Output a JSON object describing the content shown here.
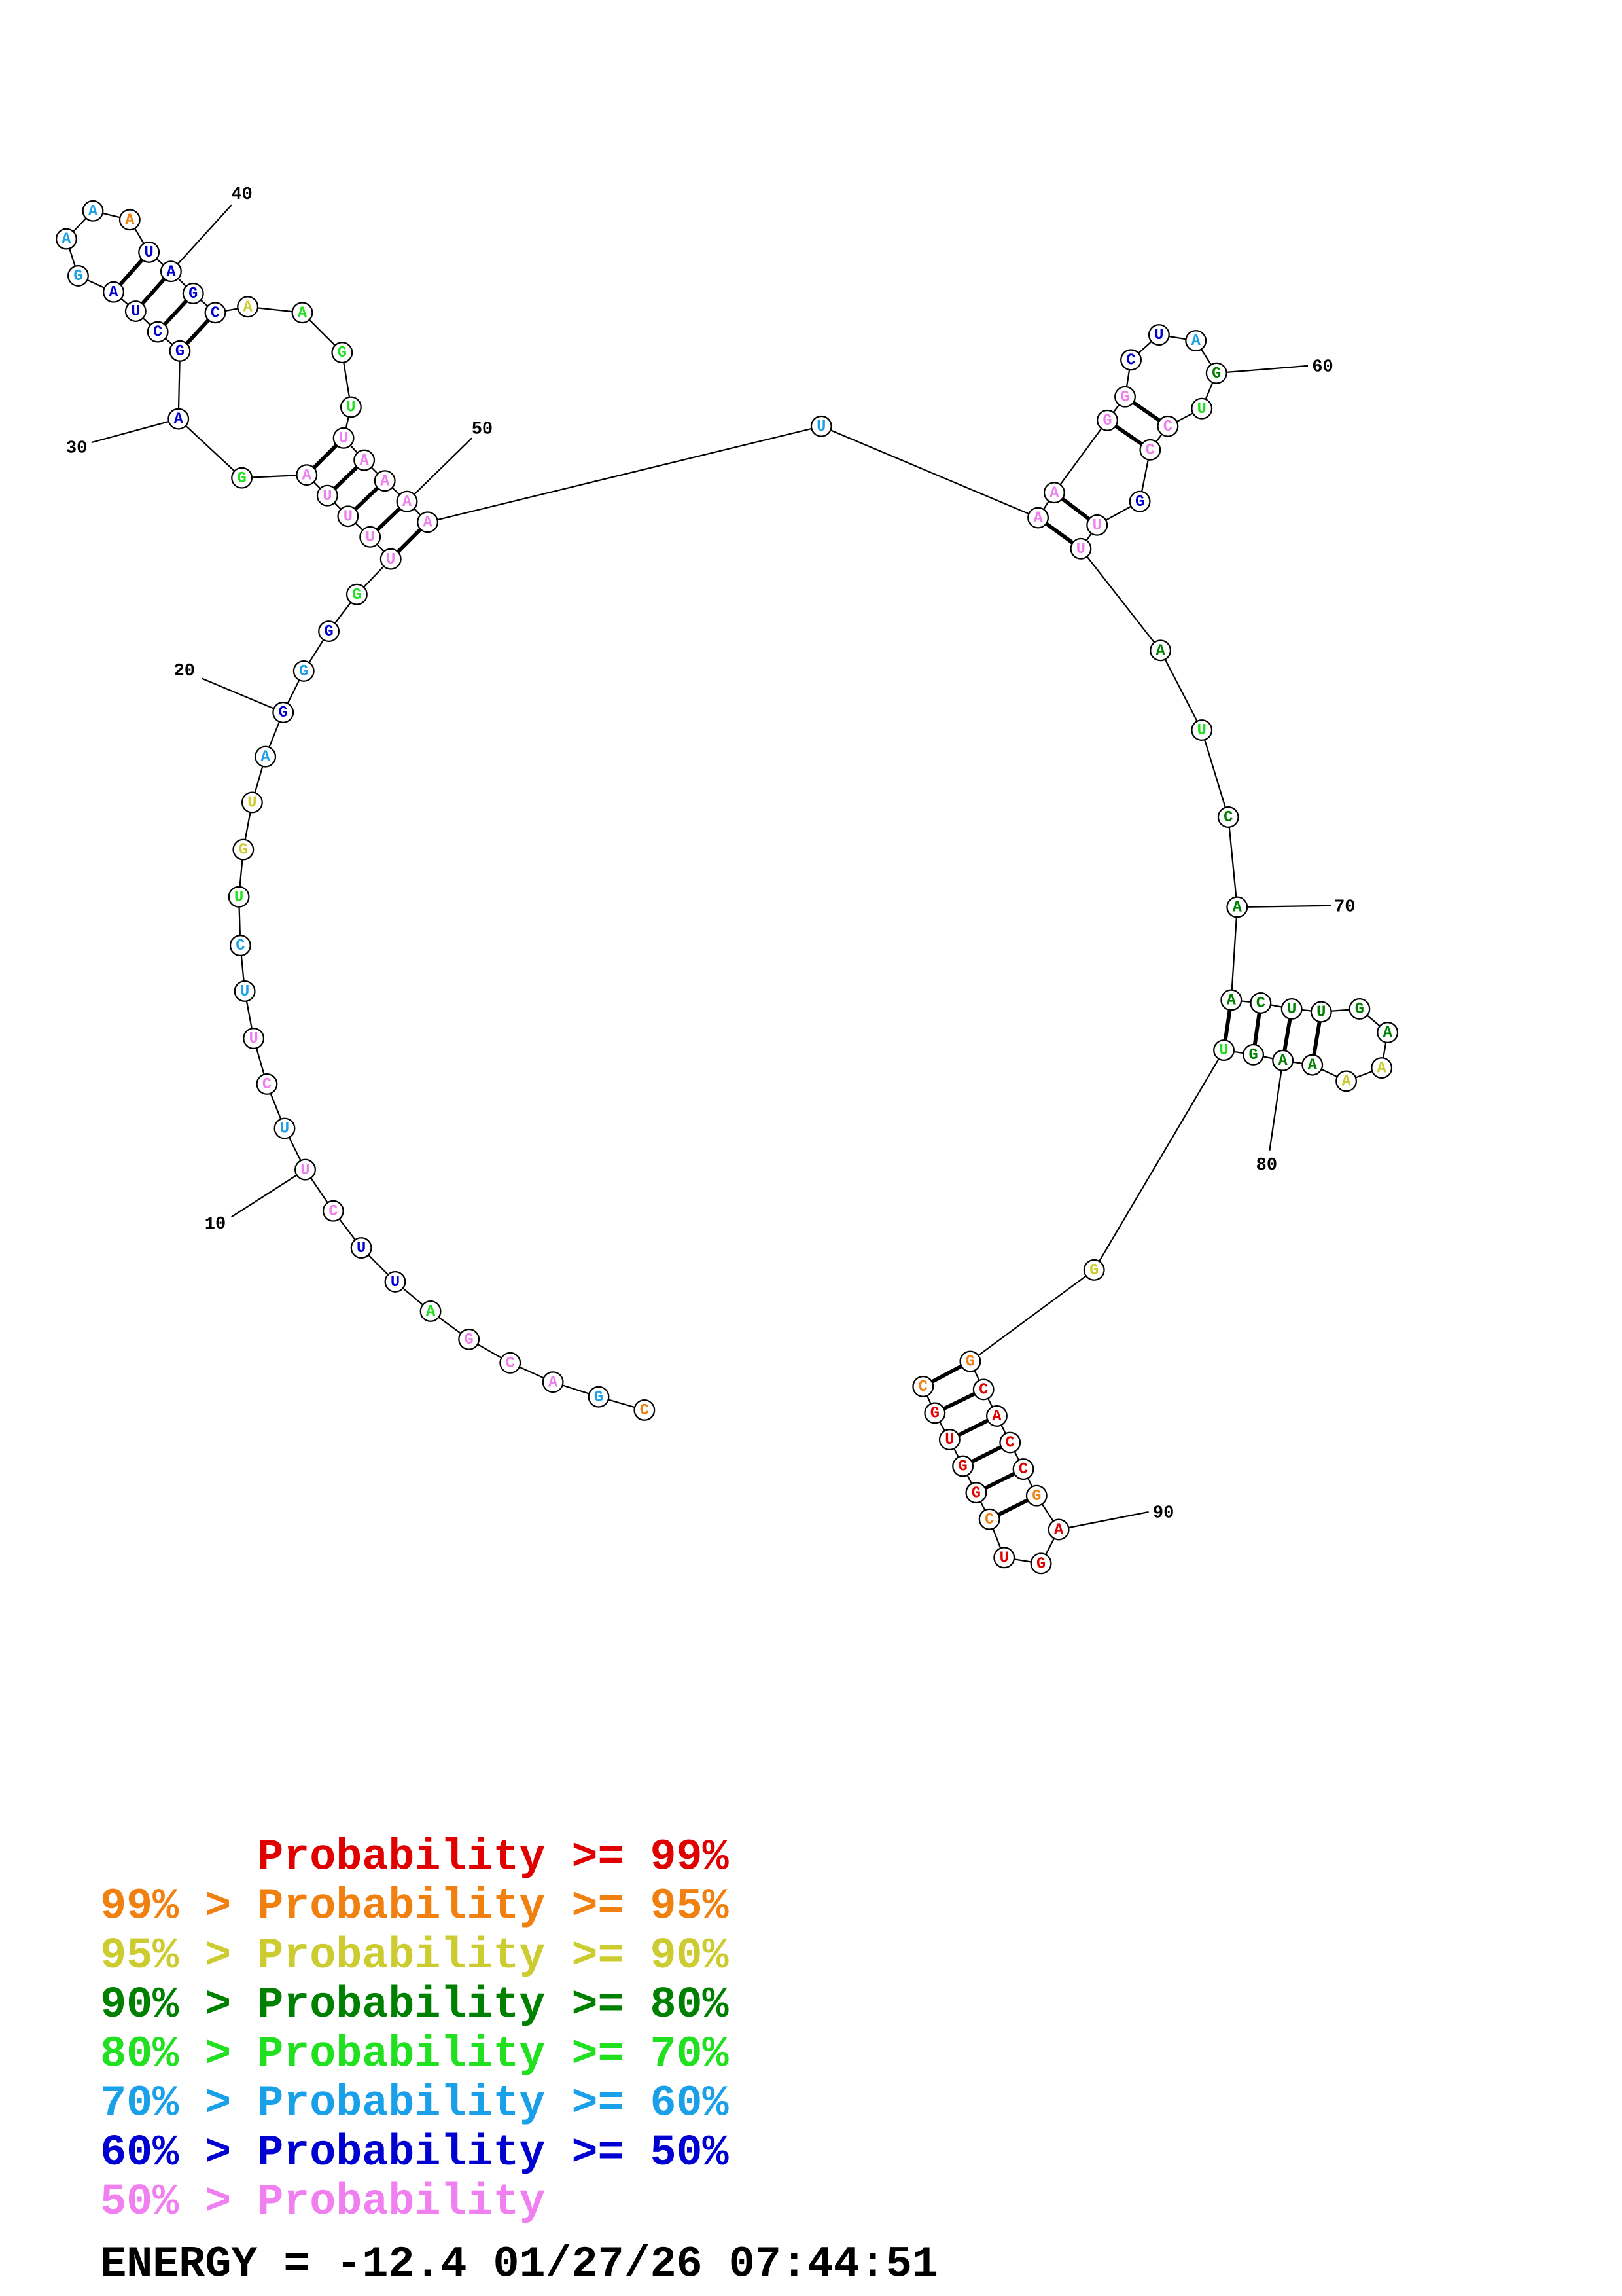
{
  "bases": [
    "C",
    "G",
    "A",
    "C",
    "G",
    "A",
    "U",
    "U",
    "C",
    "U",
    "U",
    "C",
    "U",
    "U",
    "C",
    "U",
    "G",
    "U",
    "A",
    "G",
    "G",
    "G",
    "G",
    "U",
    "U",
    "U",
    "U",
    "A",
    "G",
    "A",
    "G",
    "C",
    "U",
    "A",
    "G",
    "A",
    "A",
    "A",
    "U",
    "A",
    "G",
    "C",
    "A",
    "A",
    "G",
    "U",
    "U",
    "A",
    "A",
    "A",
    "A",
    "U",
    "A",
    "A",
    "G",
    "G",
    "C",
    "U",
    "A",
    "G",
    "U",
    "C",
    "C",
    "G",
    "U",
    "U",
    "A",
    "U",
    "C",
    "A",
    "A",
    "C",
    "U",
    "U",
    "G",
    "A",
    "A",
    "A",
    "A",
    "A",
    "G",
    "U",
    "G",
    "G",
    "C",
    "A",
    "C",
    "C",
    "G",
    "A",
    "G",
    "U",
    "C",
    "G",
    "G",
    "U",
    "G",
    "C"
  ],
  "base_level": [
    1,
    5,
    7,
    7,
    7,
    4,
    6,
    6,
    7,
    7,
    5,
    7,
    7,
    5,
    5,
    4,
    2,
    2,
    5,
    6,
    5,
    6,
    4,
    7,
    7,
    7,
    7,
    7,
    4,
    6,
    6,
    6,
    6,
    6,
    5,
    5,
    5,
    1,
    6,
    6,
    6,
    6,
    2,
    4,
    4,
    4,
    7,
    7,
    7,
    7,
    7,
    5,
    7,
    7,
    7,
    7,
    6,
    6,
    5,
    3,
    4,
    7,
    7,
    6,
    7,
    7,
    3,
    4,
    3,
    3,
    3,
    3,
    3,
    3,
    3,
    3,
    2,
    2,
    3,
    3,
    3,
    4,
    2,
    1,
    0,
    0,
    0,
    0,
    1,
    0,
    0,
    0,
    1,
    0,
    0,
    0,
    0,
    1
  ],
  "pairs": [
    [
      24,
      51
    ],
    [
      25,
      50
    ],
    [
      26,
      49
    ],
    [
      27,
      48
    ],
    [
      28,
      47
    ],
    [
      31,
      42
    ],
    [
      32,
      41
    ],
    [
      33,
      40
    ],
    [
      34,
      39
    ],
    [
      53,
      66
    ],
    [
      54,
      65
    ],
    [
      55,
      63
    ],
    [
      56,
      62
    ],
    [
      71,
      82
    ],
    [
      72,
      81
    ],
    [
      73,
      80
    ],
    [
      74,
      79
    ],
    [
      84,
      98
    ],
    [
      85,
      97
    ],
    [
      86,
      96
    ],
    [
      87,
      95
    ],
    [
      88,
      94
    ],
    [
      89,
      93
    ]
  ],
  "position_labels": [
    10,
    20,
    30,
    40,
    50,
    60,
    70,
    80,
    90
  ],
  "legend": [
    {
      "text": "Probability >= 99%",
      "color": "#e00000"
    },
    {
      "text": "99% > Probability >= 95%",
      "color": "#f08010"
    },
    {
      "text": "95% > Probability >= 90%",
      "color": "#cccc30"
    },
    {
      "text": "90% > Probability >= 80%",
      "color": "#008000"
    },
    {
      "text": "80% > Probability >= 70%",
      "color": "#20e020"
    },
    {
      "text": "70% > Probability >= 60%",
      "color": "#1aa0e8"
    },
    {
      "text": "60% > Probability >= 50%",
      "color": "#0000d0"
    },
    {
      "text": "50% > Probability",
      "color": "#f080f0"
    }
  ],
  "footer": "ENERGY = -12.4  01/27/26 07:44:51"
}
